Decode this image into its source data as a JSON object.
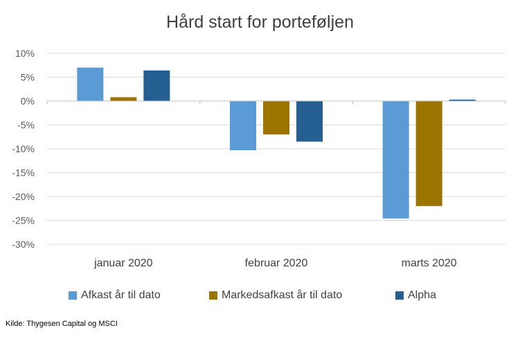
{
  "chart_data": {
    "type": "bar",
    "title": "Hård start for porteføljen",
    "categories": [
      "januar 2020",
      "februar 2020",
      "marts 2020"
    ],
    "series": [
      {
        "name": "Afkast år til dato",
        "color": "#5B9BD5",
        "values": [
          7.0,
          -10.3,
          -24.6
        ]
      },
      {
        "name": "Markedsafkast år til dato",
        "color": "#9C7400",
        "values": [
          0.8,
          -7.0,
          -22.0
        ]
      },
      {
        "name": "Alpha",
        "color": "#255E91",
        "values": [
          6.4,
          -8.5,
          0.3
        ]
      }
    ],
    "ylim": [
      -30,
      10
    ],
    "yticks": [
      "10%",
      "5%",
      "0%",
      "-5%",
      "-10%",
      "-15%",
      "-20%",
      "-25%",
      "-30%"
    ],
    "ytick_values": [
      10,
      5,
      0,
      -5,
      -10,
      -15,
      -20,
      -25,
      -30
    ],
    "grid": true,
    "legend_position": "bottom",
    "source": "Kilde: Thygesen Capital og MSCI"
  }
}
